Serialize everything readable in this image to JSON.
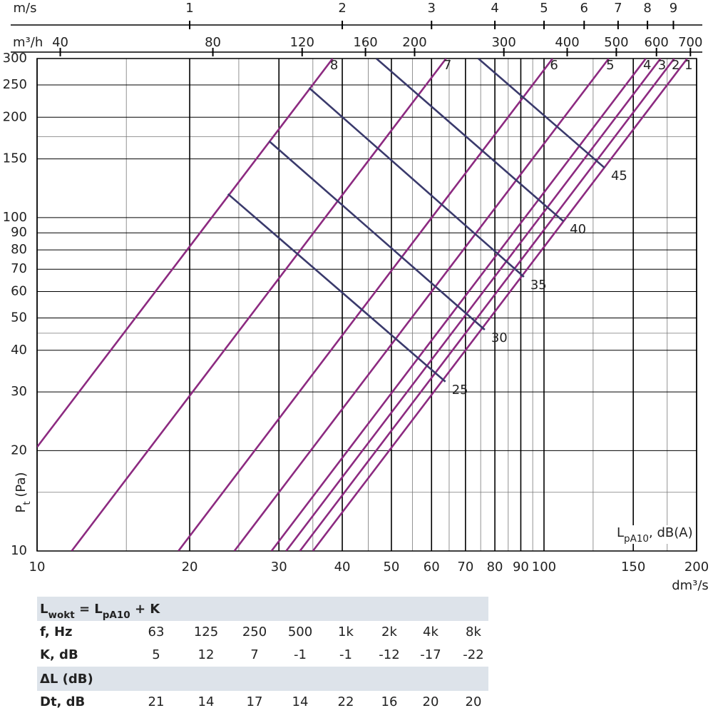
{
  "chart_data": {
    "type": "line",
    "xscale": "log",
    "yscale": "log",
    "xlim": [
      10,
      200
    ],
    "ylim": [
      10,
      300
    ],
    "xticks": [
      10,
      20,
      30,
      40,
      50,
      60,
      70,
      80,
      90,
      100,
      150,
      200
    ],
    "xminor": [
      15,
      25,
      35,
      45,
      55,
      65,
      75,
      85,
      95,
      125,
      175
    ],
    "yticks": [
      10,
      20,
      30,
      40,
      50,
      60,
      70,
      80,
      90,
      100,
      150,
      200,
      250,
      300
    ],
    "yminor": [
      15,
      45,
      175
    ],
    "x_label": "dm³/s",
    "y_label": [
      {
        "text": "P"
      },
      {
        "text": "t",
        "sub": true
      },
      {
        "text": " (Pa)"
      }
    ],
    "annotation": [
      {
        "text": "L"
      },
      {
        "text": "pA10",
        "sub": true
      },
      {
        "text": ", dB(A)"
      }
    ],
    "top_axes": [
      {
        "label": "m/s",
        "xlim": [
          0.5,
          10
        ],
        "xticks": [
          1,
          2,
          3,
          4,
          5,
          6,
          7,
          8,
          9
        ]
      },
      {
        "label": "m³/h",
        "xlim": [
          36,
          720
        ],
        "xticks": [
          40,
          80,
          120,
          160,
          200,
          300,
          400,
          500,
          600,
          700
        ]
      }
    ],
    "series": [
      {
        "name": "8",
        "color": "#8c2a80",
        "x": [
          10,
          38.3
        ],
        "values": [
          20.5,
          300
        ]
      },
      {
        "name": "7",
        "color": "#8c2a80",
        "x": [
          11.7,
          64.1
        ],
        "values": [
          10,
          300
        ]
      },
      {
        "name": "6",
        "color": "#8c2a80",
        "x": [
          19,
          104
        ],
        "values": [
          10,
          300
        ]
      },
      {
        "name": "5",
        "color": "#8c2a80",
        "x": [
          24.5,
          134.2
        ],
        "values": [
          10,
          300
        ]
      },
      {
        "name": "4",
        "color": "#8c2a80",
        "x": [
          29,
          158.8
        ],
        "values": [
          10,
          300
        ]
      },
      {
        "name": "3",
        "color": "#8c2a80",
        "x": [
          31,
          169.8
        ],
        "values": [
          10,
          300
        ]
      },
      {
        "name": "2",
        "color": "#8c2a80",
        "x": [
          33,
          180.7
        ],
        "values": [
          10,
          300
        ]
      },
      {
        "name": "1",
        "color": "#8c2a80",
        "x": [
          35,
          191.7
        ],
        "values": [
          10,
          300
        ]
      },
      {
        "name": "45",
        "color": "#3a3a6c",
        "x": [
          74.2,
          131.7
        ],
        "values": [
          300,
          141
        ]
      },
      {
        "name": "40",
        "color": "#3a3a6c",
        "x": [
          46.7,
          109.2
        ],
        "values": [
          300,
          97.5
        ]
      },
      {
        "name": "35",
        "color": "#3a3a6c",
        "x": [
          34.4,
          91.3
        ],
        "values": [
          245,
          66.4
        ]
      },
      {
        "name": "30",
        "color": "#3a3a6c",
        "x": [
          28.7,
          76.4
        ],
        "values": [
          169.5,
          46.1
        ]
      },
      {
        "name": "25",
        "color": "#3a3a6c",
        "x": [
          23.8,
          63.9
        ],
        "values": [
          117.7,
          32.2
        ]
      }
    ]
  },
  "table": {
    "sections": [
      {
        "title": [
          {
            "text": "L"
          },
          {
            "text": "wokt",
            "sub": true
          },
          {
            "text": " = L"
          },
          {
            "text": "pA10",
            "sub": true
          },
          {
            "text": " + K"
          }
        ],
        "rows": [
          [
            "f, Hz",
            63,
            125,
            250,
            500,
            "1k",
            "2k",
            "4k",
            "8k"
          ],
          [
            "K, dB",
            5,
            12,
            7,
            -1,
            -1,
            -12,
            -17,
            -22
          ]
        ]
      },
      {
        "title": [
          {
            "text": "ΔL (dB)"
          }
        ],
        "rows": [
          [
            "Dt, dB",
            21,
            14,
            17,
            14,
            22,
            16,
            20,
            20
          ]
        ]
      }
    ]
  }
}
